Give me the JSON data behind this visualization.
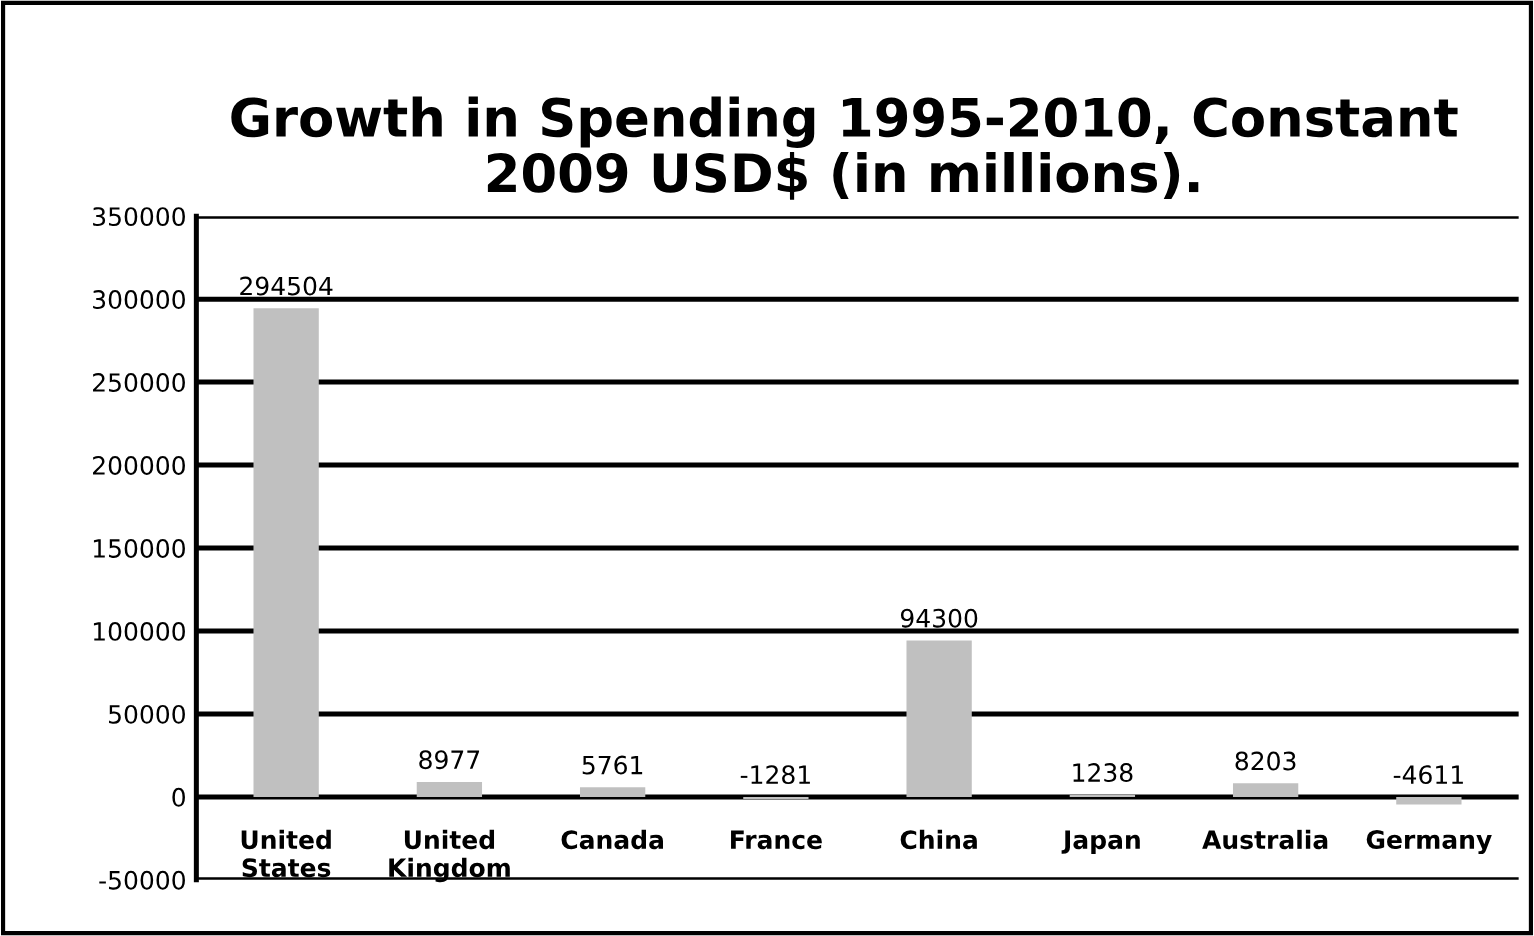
{
  "chart_data": {
    "type": "bar",
    "title": "Growth in Spending 1995-2010, Constant\n2009 USD$ (in millions).",
    "categories": [
      "United\nStates",
      "United\nKingdom",
      "Canada",
      "France",
      "China",
      "Japan",
      "Australia",
      "Germany"
    ],
    "values": [
      294504,
      8977,
      5761,
      -1281,
      94300,
      1238,
      8203,
      -4611
    ],
    "color": "#c0c0c0",
    "ylim": [
      -50000,
      350000
    ],
    "yticks": [
      -50000,
      0,
      50000,
      100000,
      150000,
      200000,
      250000,
      300000,
      350000
    ],
    "grid": "y",
    "data_labels": true
  }
}
